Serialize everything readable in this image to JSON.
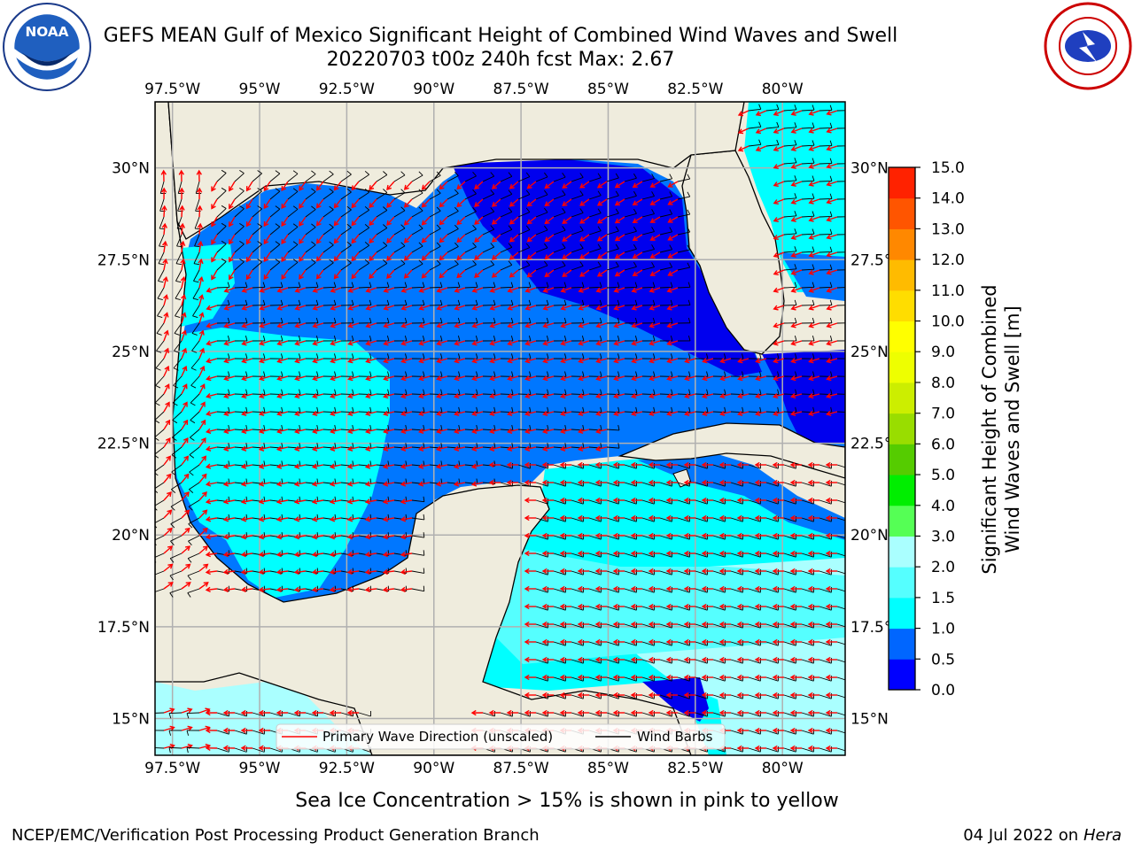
{
  "title": {
    "line1": "GEFS MEAN Gulf of Mexico Significant Height of Combined Wind Waves and Swell",
    "line2": "20220703 t00z 240h fcst   Max: 2.67"
  },
  "axes": {
    "lon_labels": [
      "97.5°W",
      "95°W",
      "92.5°W",
      "90°W",
      "87.5°W",
      "85°W",
      "82.5°W",
      "80°W"
    ],
    "lat_labels": [
      "30°N",
      "27.5°N",
      "25°N",
      "22.5°N",
      "20°N",
      "17.5°N",
      "15°N"
    ],
    "lon_range": [
      -98,
      -78.2
    ],
    "lat_range": [
      14,
      31.8
    ]
  },
  "legend": {
    "wave_direction": "Primary Wave Direction (unscaled)",
    "wind_barbs": "Wind Barbs"
  },
  "colorbar": {
    "label_line1": "Significant Height of Combined",
    "label_line2": "Wind Waves and Swell [m]",
    "ticks": [
      "0.0",
      "0.5",
      "1.0",
      "1.5",
      "2.0",
      "3.0",
      "4.0",
      "5.0",
      "6.0",
      "7.0",
      "8.0",
      "9.0",
      "10.0",
      "11.0",
      "12.0",
      "13.0",
      "14.0",
      "15.0"
    ],
    "colors": [
      "#0000ff",
      "#0066ff",
      "#00ffff",
      "#55ffff",
      "#aaffff",
      "#55ff55",
      "#00ee00",
      "#55cc00",
      "#99dd00",
      "#ccee00",
      "#eeff00",
      "#ffff00",
      "#ffdd00",
      "#ffbb00",
      "#ff8800",
      "#ff5500",
      "#ff2200",
      "#ff0000"
    ]
  },
  "colors": {
    "land": "#efecdd",
    "arrow": "#ff0000",
    "barb": "#000000",
    "grid": "#b0b0b0"
  },
  "footer": {
    "sea_ice_note": "Sea Ice Concentration > 15% is shown in pink to yellow",
    "credit": "NCEP/EMC/Verification Post Processing Product Generation Branch",
    "date": "04 Jul 2022 on",
    "host": "Hera"
  },
  "logos": {
    "left": "noaa-logo",
    "right": "nws-logo"
  }
}
